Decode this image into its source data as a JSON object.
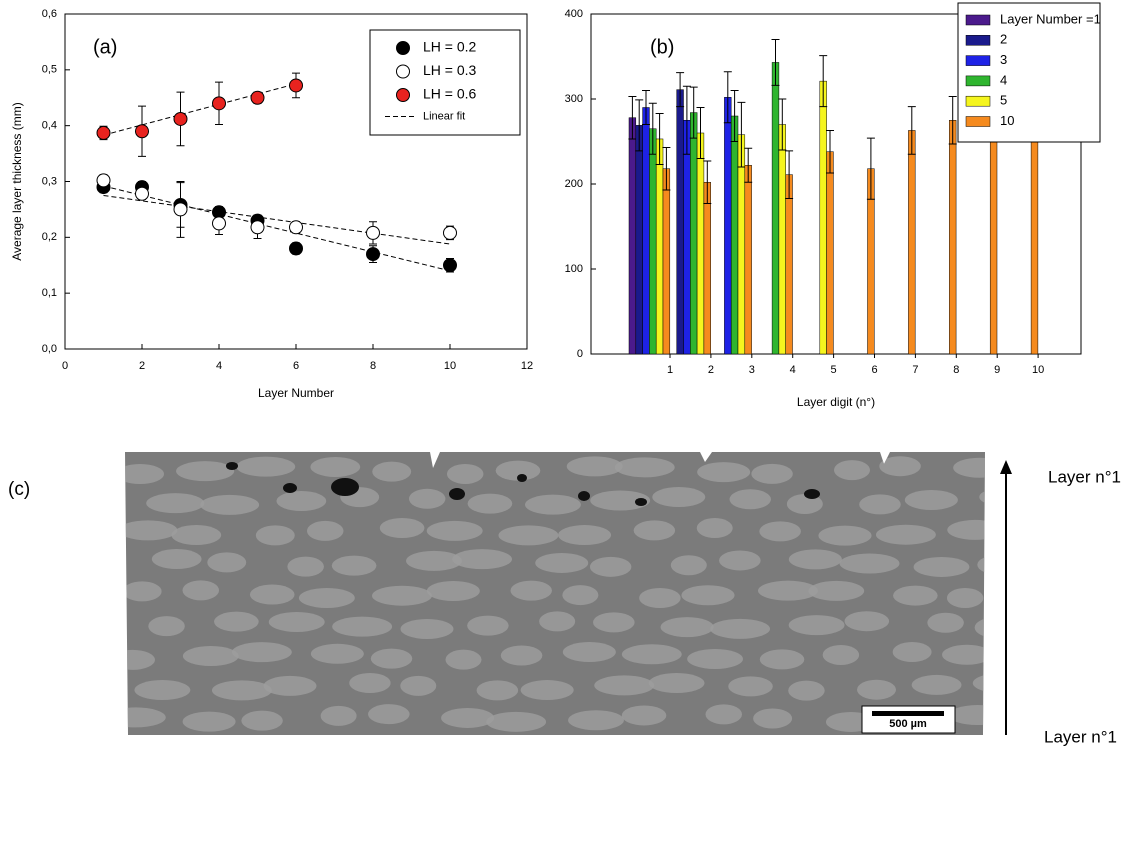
{
  "chart_data": [
    {
      "type": "scatter",
      "annotation": "(a)",
      "xlabel": "Layer Number",
      "ylabel": "Average layer thickness (mm)",
      "xlim": [
        0,
        12
      ],
      "xticks": [
        0,
        2,
        4,
        6,
        8,
        10,
        12
      ],
      "ylim": [
        0,
        0.6
      ],
      "yticks": [
        {
          "value": 0,
          "label": "0,0"
        },
        {
          "value": 0.1,
          "label": "0,1"
        },
        {
          "value": 0.2,
          "label": "0,2"
        },
        {
          "value": 0.3,
          "label": "0,3"
        },
        {
          "value": 0.4,
          "label": "0,4"
        },
        {
          "value": 0.5,
          "label": "0,5"
        },
        {
          "value": 0.6,
          "label": "0,6"
        }
      ],
      "legend_position": "upper right",
      "series": [
        {
          "name": "LH = 0.2",
          "color": "#000000",
          "x": [
            1,
            2,
            3,
            4,
            5,
            6,
            8,
            10
          ],
          "values": [
            0.29,
            0.29,
            0.258,
            0.245,
            0.23,
            0.18,
            0.17,
            0.15
          ],
          "errors": [
            0.01,
            0.01,
            0.04,
            0.01,
            0.01,
            0.01,
            0.015,
            0.012
          ]
        },
        {
          "name": "LH = 0.3",
          "color": "#ffffff",
          "x": [
            1,
            2,
            3,
            4,
            5,
            6,
            8,
            10
          ],
          "values": [
            0.302,
            0.278,
            0.25,
            0.225,
            0.218,
            0.218,
            0.208,
            0.208
          ],
          "errors": [
            0.01,
            0.01,
            0.05,
            0.02,
            0.02,
            0.01,
            0.02,
            0.012
          ]
        },
        {
          "name": "LH = 0.6",
          "color": "#e8231f",
          "x": [
            1,
            2,
            3,
            4,
            5,
            6
          ],
          "values": [
            0.387,
            0.39,
            0.412,
            0.44,
            0.45,
            0.472
          ],
          "errors": [
            0.012,
            0.045,
            0.048,
            0.038,
            0.01,
            0.022
          ]
        }
      ],
      "fit": {
        "name": "Linear fit",
        "lines": [
          {
            "x": [
              1,
              10
            ],
            "values": [
              0.292,
              0.14
            ]
          },
          {
            "x": [
              1,
              10
            ],
            "values": [
              0.275,
              0.188
            ]
          },
          {
            "x": [
              1,
              6
            ],
            "values": [
              0.383,
              0.475
            ]
          }
        ]
      }
    },
    {
      "type": "bar",
      "annotation": "(b)",
      "xlabel": "Layer digit (n°)",
      "categories": [
        "1",
        "2",
        "3",
        "4",
        "5",
        "6",
        "7",
        "8",
        "9",
        "10"
      ],
      "ylim": [
        0,
        400
      ],
      "yticks": [
        0,
        100,
        200,
        300,
        400
      ],
      "legend_position": "upper right",
      "series": [
        {
          "name": "Layer Number =1",
          "color": "#4b1a8c",
          "values": [
            278,
            null,
            null,
            null,
            null,
            null,
            null,
            null,
            null,
            null
          ],
          "errors": [
            25,
            null,
            null,
            null,
            null,
            null,
            null,
            null,
            null,
            null
          ]
        },
        {
          "name": "2",
          "color": "#1a1a8c",
          "values": [
            269,
            311,
            null,
            null,
            null,
            null,
            null,
            null,
            null,
            null
          ],
          "errors": [
            30,
            20,
            null,
            null,
            null,
            null,
            null,
            null,
            null,
            null
          ]
        },
        {
          "name": "3",
          "color": "#1e22e6",
          "values": [
            290,
            275,
            302,
            null,
            null,
            null,
            null,
            null,
            null,
            null
          ],
          "errors": [
            20,
            40,
            30,
            null,
            null,
            null,
            null,
            null,
            null,
            null
          ]
        },
        {
          "name": "4",
          "color": "#2fb52f",
          "values": [
            265,
            284,
            280,
            343,
            null,
            null,
            null,
            null,
            null,
            null
          ],
          "errors": [
            30,
            30,
            30,
            27,
            null,
            null,
            null,
            null,
            null,
            null
          ]
        },
        {
          "name": "5",
          "color": "#f5f51e",
          "values": [
            253,
            260,
            258,
            270,
            321,
            null,
            null,
            null,
            null,
            null
          ],
          "errors": [
            30,
            30,
            38,
            30,
            30,
            null,
            null,
            null,
            null,
            null
          ]
        },
        {
          "name": "10",
          "color": "#f58a1e",
          "values": [
            218,
            202,
            222,
            211,
            238,
            218,
            263,
            275,
            285,
            295
          ],
          "errors": [
            25,
            25,
            20,
            28,
            25,
            36,
            28,
            28,
            28,
            28
          ]
        }
      ]
    }
  ],
  "micrograph": {
    "label": "(c)",
    "top_label": "Layer n°1",
    "bottom_label": "Layer n°1",
    "scale_bar": "500 µm"
  }
}
